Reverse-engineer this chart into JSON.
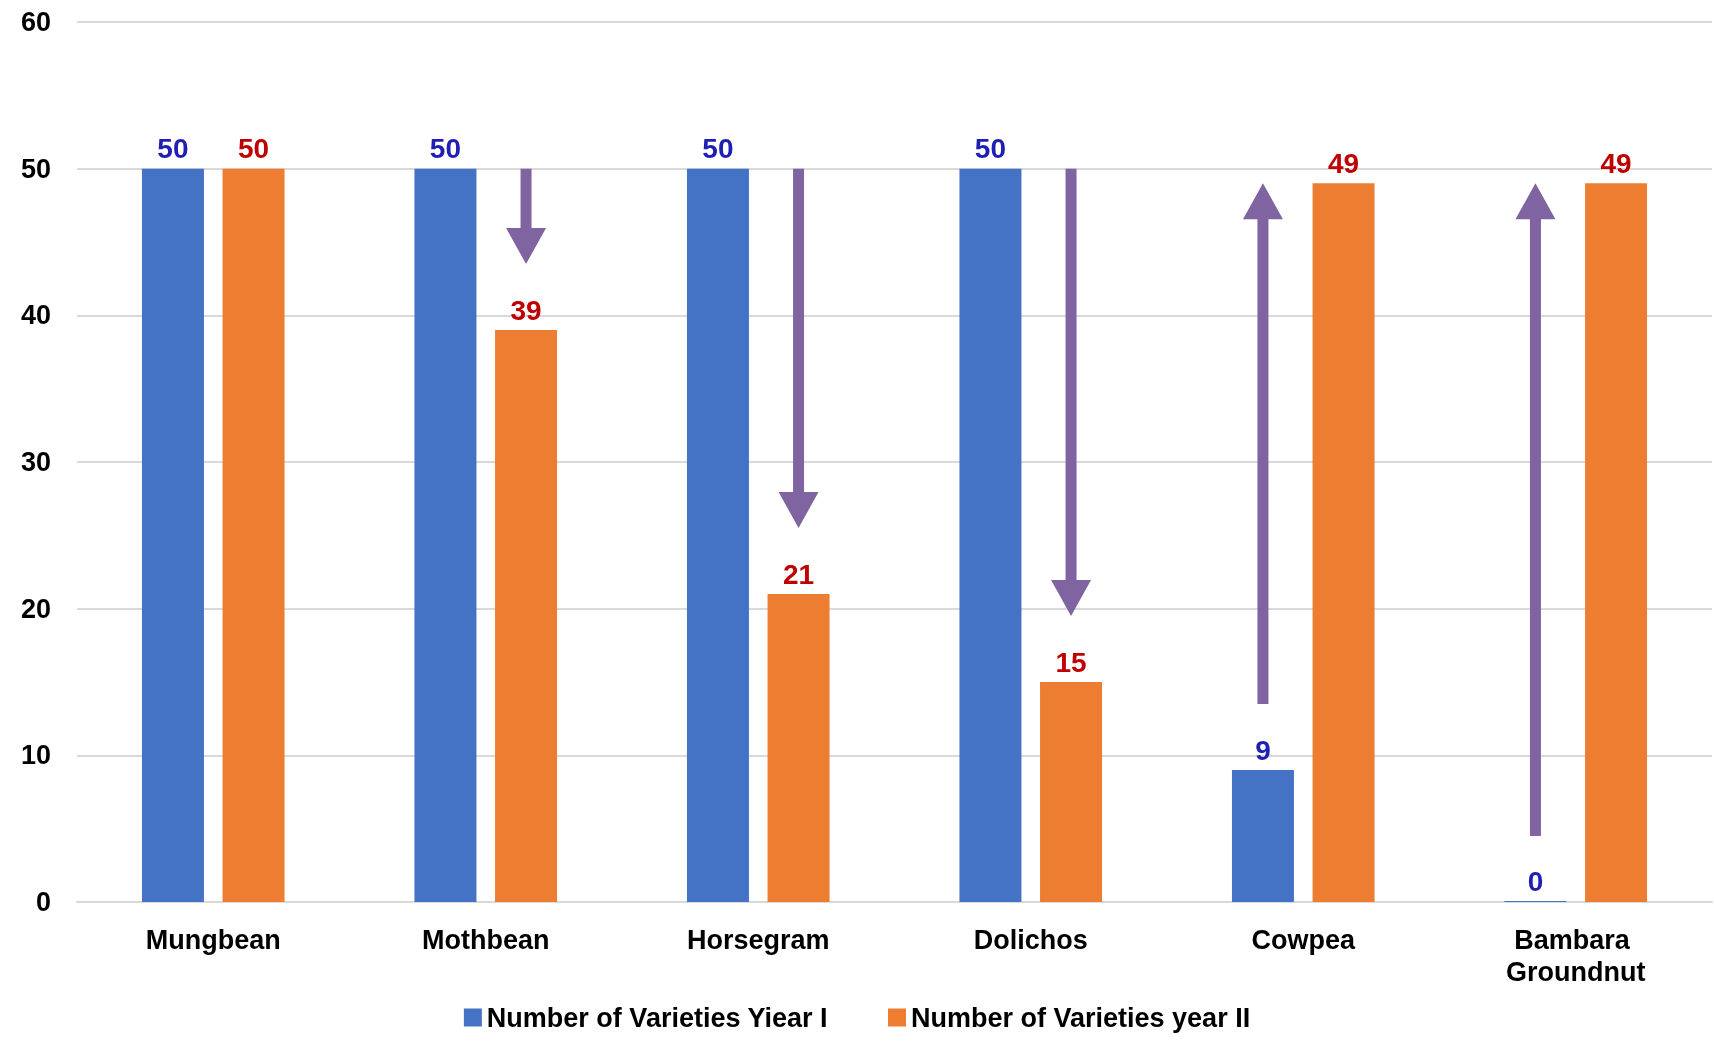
{
  "chart_data": {
    "type": "bar",
    "categories": [
      "Mungbean",
      "Mothbean",
      "Horsegram",
      "Dolichos",
      "Cowpea",
      "Bambara Groundnut"
    ],
    "series": [
      {
        "name": "Number of Varieties Yiear I",
        "color": "#4472c4",
        "values": [
          50,
          50,
          50,
          50,
          9,
          0
        ]
      },
      {
        "name": "Number of Varieties year II",
        "color": "#ed7d31",
        "values": [
          50,
          39,
          21,
          15,
          49,
          49
        ]
      }
    ],
    "ylim": [
      0,
      60
    ],
    "yticks": [
      0,
      10,
      20,
      30,
      40,
      50,
      60
    ],
    "grid": "y",
    "legend": "bottom",
    "data_labels": true
  }
}
